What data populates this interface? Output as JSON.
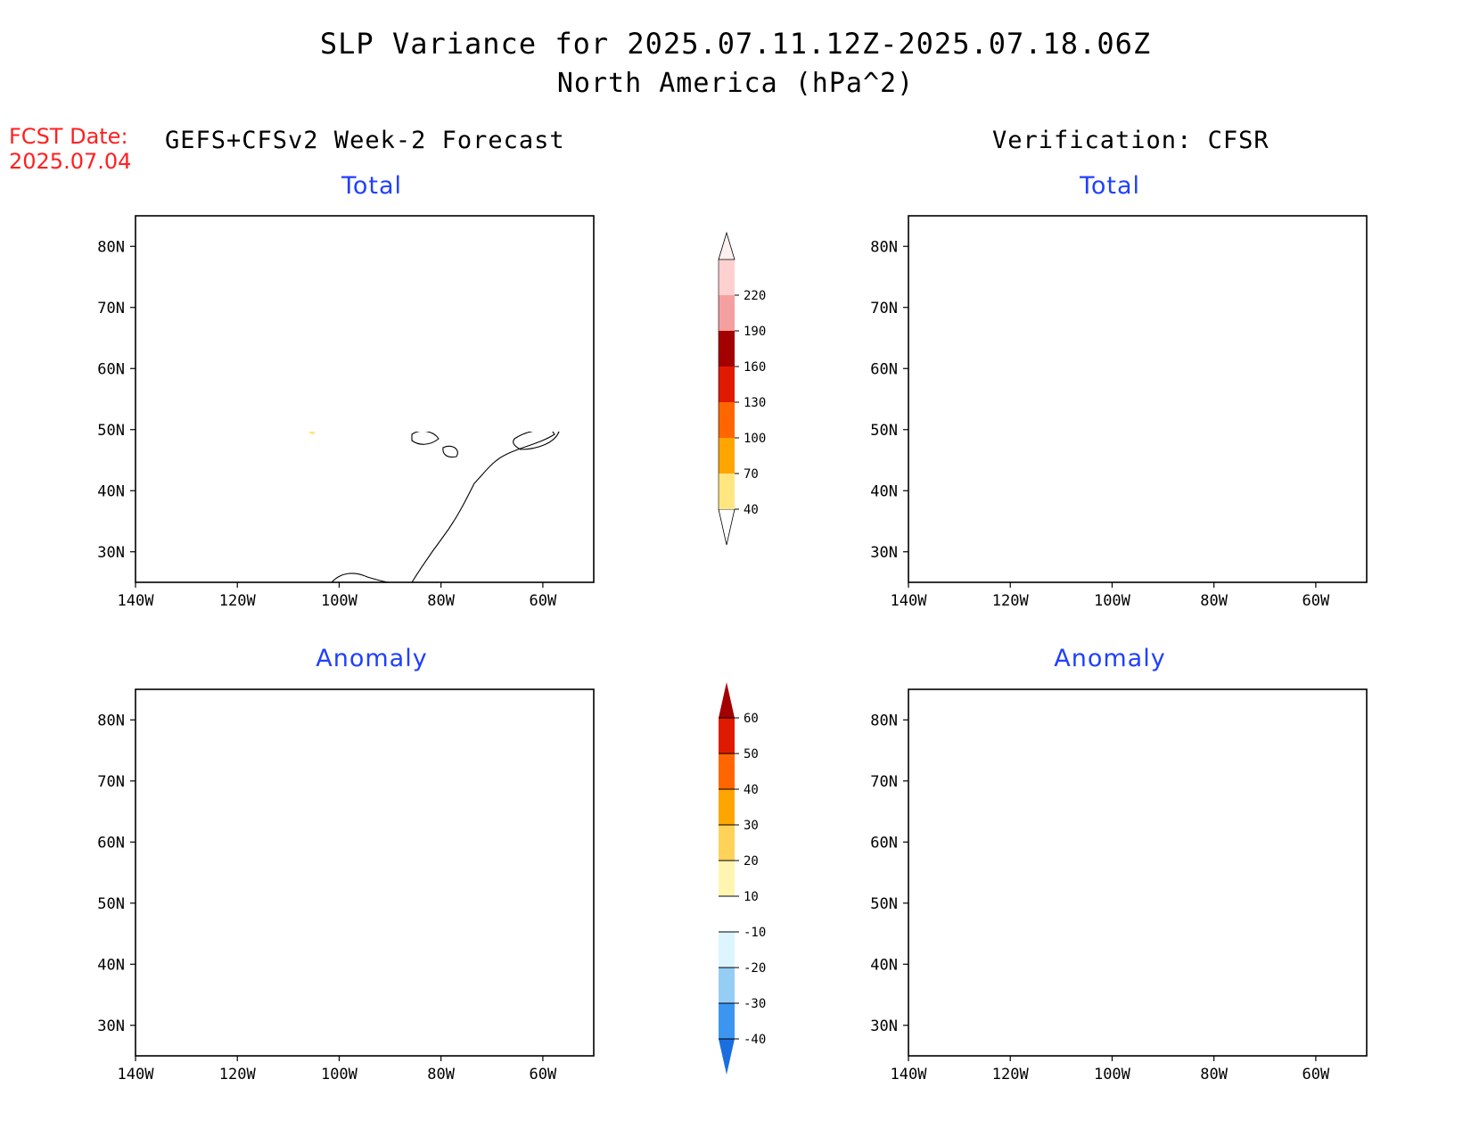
{
  "title": {
    "line1": "SLP Variance for 2025.07.11.12Z-2025.07.18.06Z",
    "line2": "North America (hPa^2)"
  },
  "forecast_date": {
    "label": "FCST Date:",
    "value": "2025.07.04"
  },
  "columns": {
    "left": "GEFS+CFSv2 Week-2 Forecast",
    "right": "Verification: CFSR"
  },
  "panels": {
    "top_left_title": "Total",
    "top_right_title": "Total",
    "bottom_left_title": "Anomaly",
    "bottom_right_title": "Anomaly"
  },
  "axes": {
    "lat_labels": [
      "80N",
      "70N",
      "60N",
      "50N",
      "40N",
      "30N"
    ],
    "lon_labels": [
      "140W",
      "120W",
      "100W",
      "80W",
      "60W"
    ]
  },
  "colorbar_total": {
    "levels": [
      "40",
      "70",
      "100",
      "130",
      "160",
      "190",
      "220"
    ],
    "colors": [
      "#ffe680",
      "#ffa500",
      "#ff6600",
      "#e01a00",
      "#a30000",
      "#f5a0a0",
      "#ffd0d0",
      "#fff0f0"
    ]
  },
  "colorbar_anomaly": {
    "levels": [
      "-40",
      "-30",
      "-20",
      "-10",
      "10",
      "20",
      "30",
      "40",
      "50",
      "60"
    ],
    "colors": [
      "#1a6ee0",
      "#3c96f0",
      "#96cdf5",
      "#dcf5ff",
      "#ffffff",
      "#fff5b0",
      "#ffd25a",
      "#ffa500",
      "#ff6600",
      "#e01a00",
      "#a30000"
    ]
  }
}
